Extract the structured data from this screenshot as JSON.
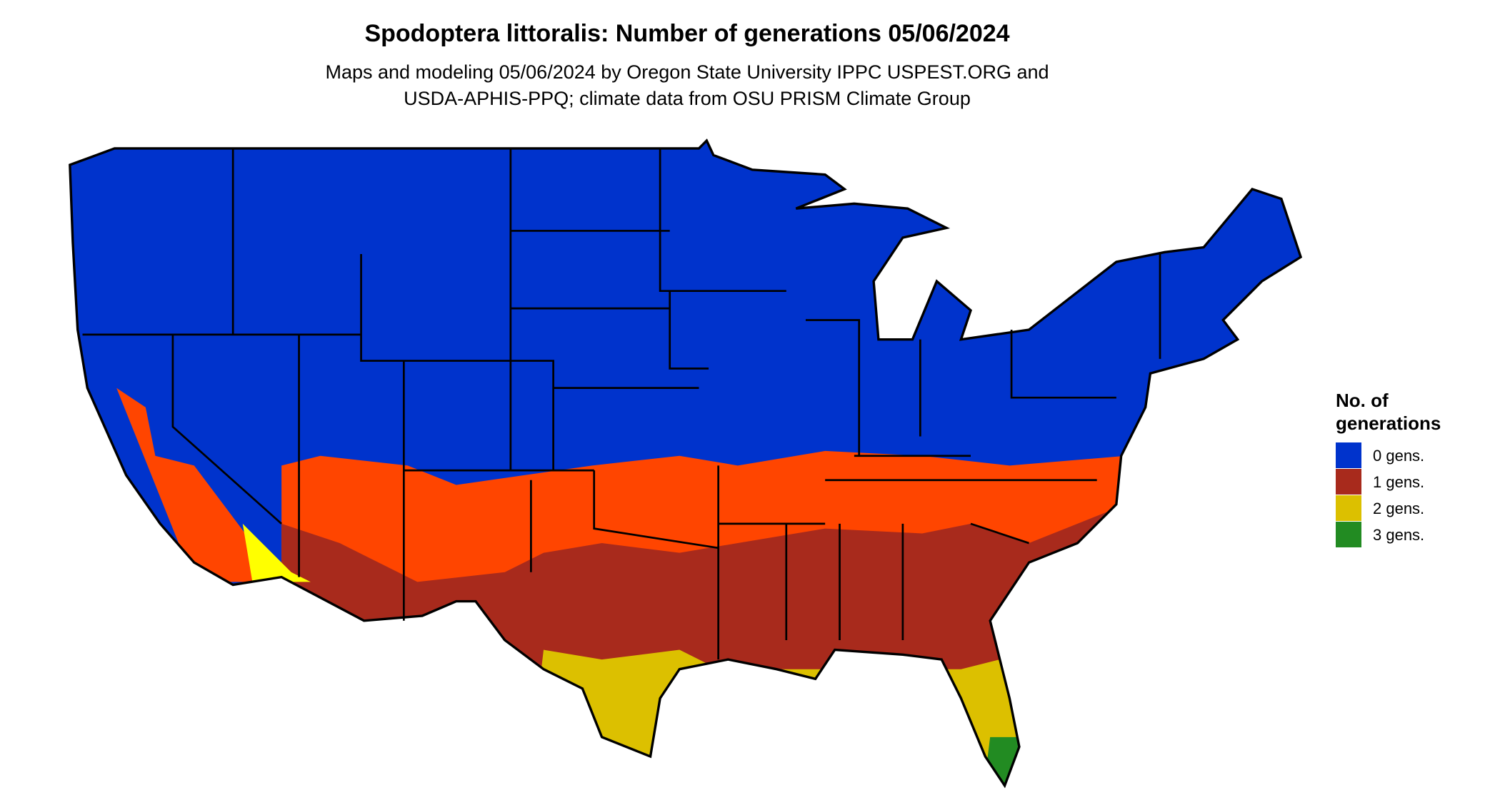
{
  "title": "Spodoptera littoralis: Number of generations 05/06/2024",
  "subtitle": [
    "Maps and modeling 05/06/2024 by Oregon State University IPPC USPEST.ORG and",
    "USDA-APHIS-PPQ; climate data from OSU PRISM Climate Group"
  ],
  "legend": {
    "title": [
      "No. of",
      "generations"
    ],
    "items": [
      {
        "label": "0 gens.",
        "color": "#0033cc"
      },
      {
        "label": "1 gens.",
        "color": "#a82a1c"
      },
      {
        "label": "2 gens.",
        "color": "#dcc000"
      },
      {
        "label": "3 gens.",
        "color": "#228b22"
      }
    ]
  }
}
